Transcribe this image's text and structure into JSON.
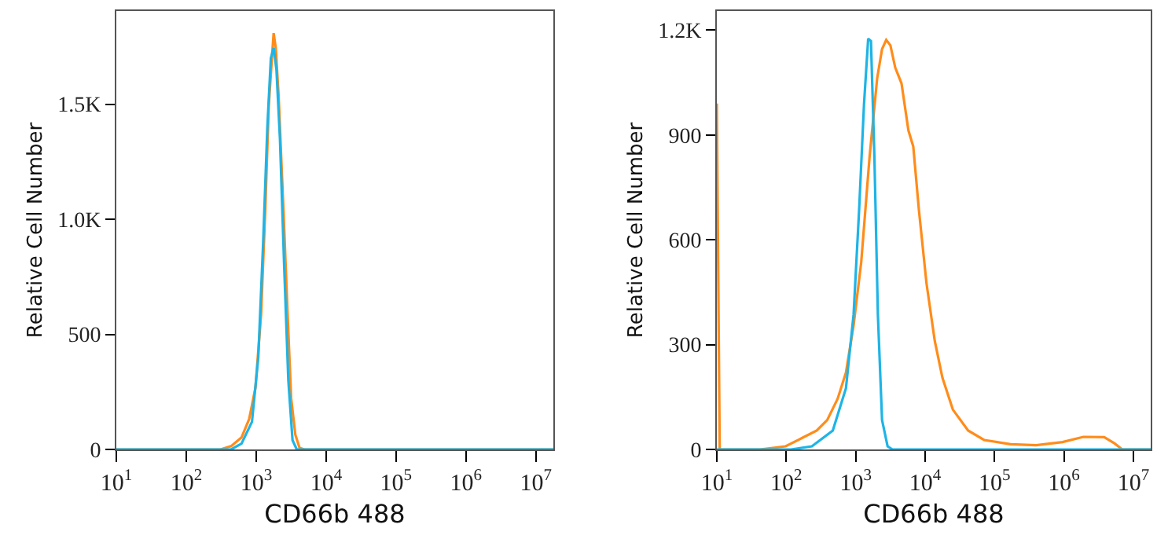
{
  "chart_data": [
    {
      "type": "line",
      "xlabel": "CD66b 488",
      "ylabel": "Relative Cell Number",
      "log": "x",
      "grid": false,
      "marker": "none",
      "line_style": "solid",
      "xlim": [
        10,
        17780000
      ],
      "xticks": [
        {
          "value": 10,
          "label": "10$^{1}$"
        },
        {
          "value": 100,
          "label": "10$^{2}$"
        },
        {
          "value": 1000,
          "label": "10$^{3}$"
        },
        {
          "value": 10000,
          "label": "10$^{4}$"
        },
        {
          "value": 100000,
          "label": "10$^{5}$"
        },
        {
          "value": 1000000,
          "label": "10$^{6}$"
        },
        {
          "value": 10000000,
          "label": "10$^{7}$"
        }
      ],
      "ylim": [
        0,
        1905
      ],
      "yticks": [
        0,
        500,
        {
          "value": 1000,
          "label": "1.0K"
        },
        {
          "value": 1500,
          "label": "1.5K"
        }
      ],
      "series": [
        {
          "color": "#ff8c1a",
          "x": [
            10,
            309,
            437,
            617,
            794,
            977,
            1175,
            1349,
            1514,
            1698,
            1778,
            1905,
            2089,
            2455,
            2818,
            3162,
            3631,
            4169,
            4898,
            17780000
          ],
          "values": [
            0,
            0,
            14,
            52,
            132,
            268,
            586,
            1041,
            1495,
            1723,
            1809,
            1745,
            1541,
            1041,
            586,
            223,
            64,
            7,
            0,
            0
          ]
        },
        {
          "color": "#1eb4e6",
          "x": [
            10,
            437,
            617,
            871,
            1072,
            1259,
            1445,
            1622,
            1778,
            1950,
            2188,
            2512,
            2884,
            3311,
            3802,
            17780000
          ],
          "values": [
            0,
            0,
            25,
            120,
            400,
            900,
            1400,
            1700,
            1745,
            1650,
            1350,
            800,
            300,
            40,
            0,
            0
          ]
        }
      ]
    },
    {
      "type": "line",
      "xlabel": "CD66b 488",
      "ylabel": "Relative Cell Number",
      "log": "x",
      "grid": false,
      "marker": "none",
      "line_style": "solid",
      "xlim": [
        10,
        17780000
      ],
      "xticks": [
        {
          "value": 10,
          "label": "10$^{1}$"
        },
        {
          "value": 100,
          "label": "10$^{2}$"
        },
        {
          "value": 1000,
          "label": "10$^{3}$"
        },
        {
          "value": 10000,
          "label": "10$^{4}$"
        },
        {
          "value": 100000,
          "label": "10$^{5}$"
        },
        {
          "value": 1000000,
          "label": "10$^{6}$"
        },
        {
          "value": 10000000,
          "label": "10$^{7}$"
        }
      ],
      "ylim": [
        0,
        1255
      ],
      "yticks": [
        0,
        300,
        600,
        900,
        {
          "value": 1200,
          "label": "1.2K"
        }
      ],
      "series": [
        {
          "color": "#ff8c1a",
          "x": [
            10,
            11,
            42,
            98,
            166,
            275,
            389,
            550,
            724,
            933,
            1202,
            1585,
            2042,
            2399,
            2754,
            3162,
            3715,
            4571,
            5754,
            6761,
            8128,
            10470,
            13800,
            17780,
            25120,
            41690,
            70790,
            169800,
            398100,
            955000,
            1905000,
            3802000,
            5370000,
            6918000,
            17780000
          ],
          "values": [
            990,
            0,
            0,
            9,
            32,
            54,
            84,
            145,
            220,
            355,
            536,
            837,
            1063,
            1146,
            1172,
            1157,
            1093,
            1048,
            913,
            867,
            687,
            476,
            310,
            205,
            114,
            54,
            27,
            15,
            12,
            21,
            36,
            35,
            17,
            0,
            0
          ]
        },
        {
          "color": "#1eb4e6",
          "x": [
            10,
            117,
            234,
            468,
            724,
            933,
            1122,
            1318,
            1514,
            1660,
            1862,
            2089,
            2399,
            2884,
            3388,
            17780000
          ],
          "values": [
            0,
            0,
            9,
            54,
            175,
            386,
            687,
            988,
            1176,
            1169,
            837,
            386,
            84,
            9,
            0,
            0
          ]
        }
      ]
    }
  ]
}
